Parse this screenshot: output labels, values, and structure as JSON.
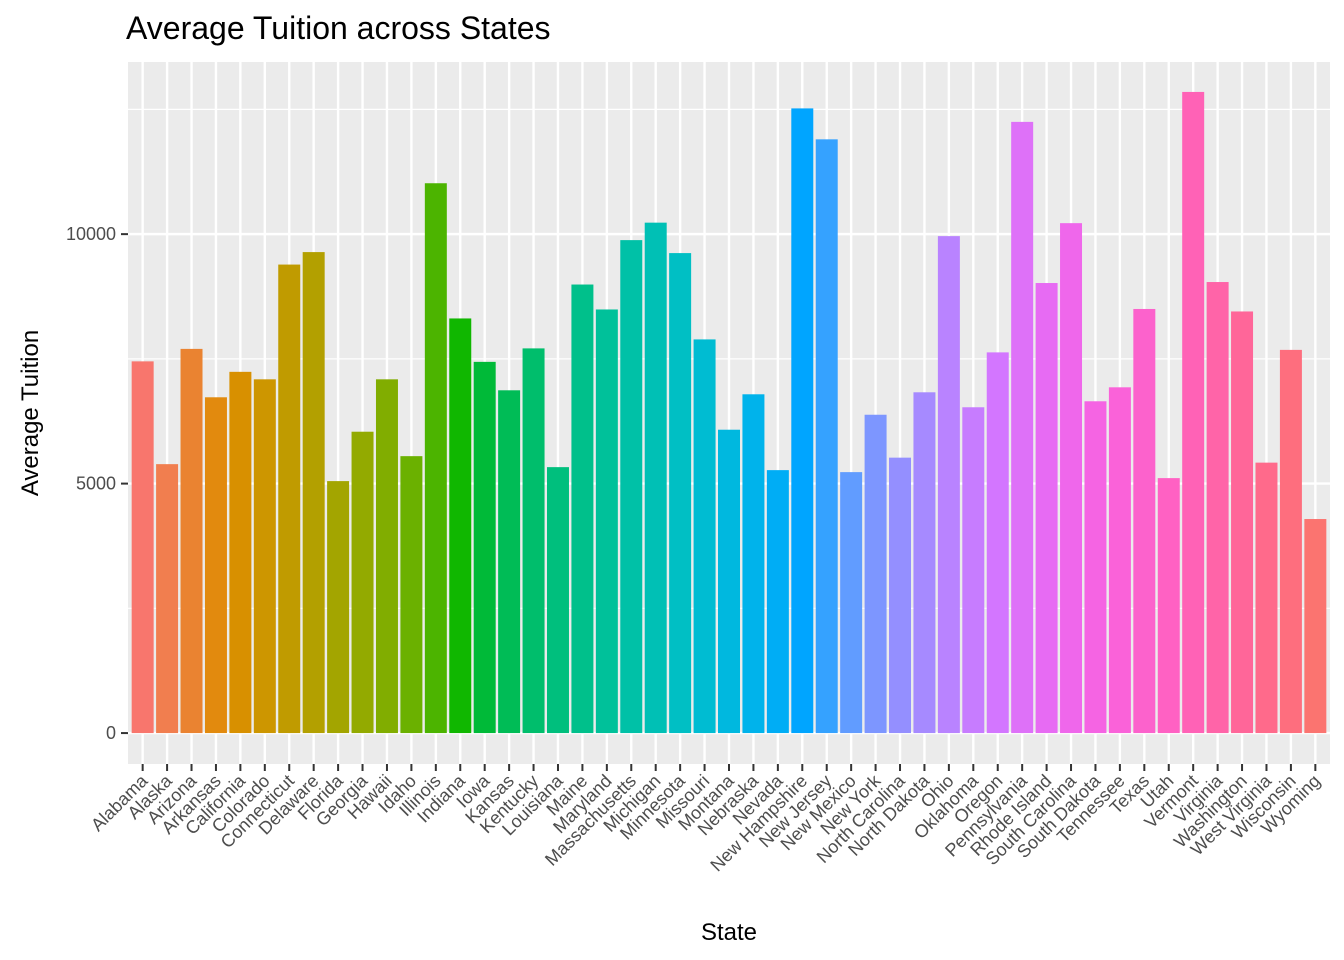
{
  "chart_data": {
    "type": "bar",
    "title": "Average Tuition across States",
    "xlabel": "State",
    "ylabel": "Average Tuition",
    "ylim": [
      -620,
      13450
    ],
    "yticks": [
      0,
      5000,
      10000
    ],
    "grid": true,
    "legend": "none",
    "panel_background": "#EBEBEB",
    "categories": [
      "Alabama",
      "Alaska",
      "Arizona",
      "Arkansas",
      "California",
      "Colorado",
      "Connecticut",
      "Delaware",
      "Florida",
      "Georgia",
      "Hawaii",
      "Idaho",
      "Illinois",
      "Indiana",
      "Iowa",
      "Kansas",
      "Kentucky",
      "Louisiana",
      "Maine",
      "Maryland",
      "Massachusetts",
      "Michigan",
      "Minnesota",
      "Missouri",
      "Montana",
      "Nebraska",
      "Nevada",
      "New Hampshire",
      "New Jersey",
      "New Mexico",
      "New York",
      "North Carolina",
      "North Dakota",
      "Ohio",
      "Oklahoma",
      "Oregon",
      "Pennsylvania",
      "Rhode Island",
      "South Carolina",
      "South Dakota",
      "Tennessee",
      "Texas",
      "Utah",
      "Vermont",
      "Virginia",
      "Washington",
      "West Virginia",
      "Wisconsin",
      "Wyoming"
    ],
    "values": [
      7450,
      5390,
      7700,
      6730,
      7240,
      7090,
      9390,
      9640,
      5050,
      6040,
      7090,
      5550,
      11020,
      8310,
      7440,
      6870,
      7710,
      5330,
      8990,
      8490,
      9880,
      10230,
      9620,
      7890,
      6080,
      6790,
      5270,
      12520,
      11900,
      5230,
      6380,
      5520,
      6830,
      9960,
      6530,
      7630,
      12250,
      9020,
      10220,
      6650,
      6930,
      8500,
      5110,
      12850,
      9040,
      8450,
      5420,
      7680,
      4290
    ],
    "colors": [
      "#F8766D",
      "#F17E4F",
      "#EA8331",
      "#E28A0E",
      "#D89000",
      "#CD9600",
      "#C09B00",
      "#B3A000",
      "#A3A500",
      "#93AA00",
      "#81AD00",
      "#6BB100",
      "#4CB400",
      "#10B700",
      "#00BA38",
      "#00BC56",
      "#00BE6C",
      "#00BF7D",
      "#00C08B",
      "#00C19A",
      "#00C1A7",
      "#00C0B5",
      "#00BFC4",
      "#00BCD2",
      "#00B8DF",
      "#00B3EB",
      "#00ADF5",
      "#00A5FF",
      "#35A2FF",
      "#619CFF",
      "#7D96FF",
      "#948FFF",
      "#A68AFF",
      "#B983FF",
      "#C77CFF",
      "#D376FF",
      "#DE71F8",
      "#E76BF3",
      "#EF67EB",
      "#F564E3",
      "#FA62D9",
      "#FC62CC",
      "#FF61C3",
      "#FF62B6",
      "#FF64A8",
      "#FF6699",
      "#FF6A8B",
      "#FE6E7E",
      "#FB7470"
    ]
  }
}
